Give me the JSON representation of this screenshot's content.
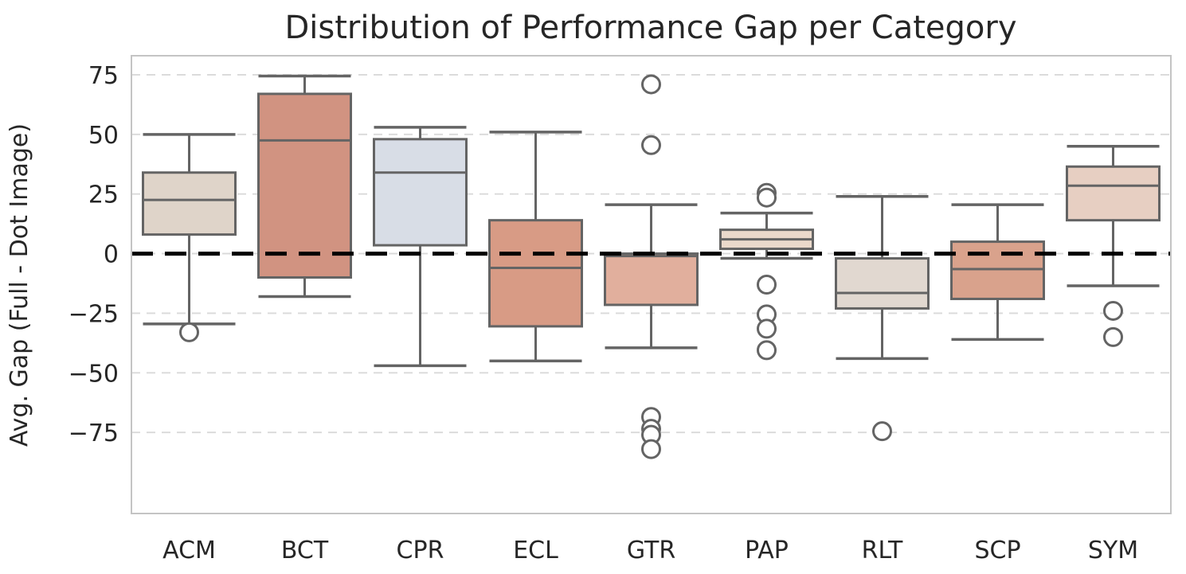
{
  "chart_data": {
    "type": "box",
    "title": "Distribution of Performance Gap per Category",
    "ylabel": "Avg. Gap (Full - Dot Image)",
    "xlabel": "",
    "categories": [
      "ACM",
      "BCT",
      "CPR",
      "ECL",
      "GTR",
      "PAP",
      "RLT",
      "SCP",
      "SYM"
    ],
    "yticks": [
      75,
      50,
      25,
      0,
      -25,
      -50,
      -75
    ],
    "ytick_labels": [
      "75",
      "50",
      "25",
      "0",
      "−25",
      "−50",
      "−75"
    ],
    "ylim": [
      -109,
      83
    ],
    "grid": "horizontal-dashed",
    "legend": "none",
    "zero_line": {
      "value": 0,
      "style": "dashed",
      "color": "#000000"
    },
    "series": [
      {
        "category": "ACM",
        "whislo": -29.5,
        "q1": 8,
        "med": 22.5,
        "q3": 34,
        "whishi": 50,
        "outliers": [
          -33
        ],
        "fill": "#dfd4c9"
      },
      {
        "category": "BCT",
        "whislo": -18,
        "q1": -10,
        "med": 47.5,
        "q3": 67,
        "whishi": 74.5,
        "outliers": [],
        "fill": "#d19381"
      },
      {
        "category": "CPR",
        "whislo": -47,
        "q1": 3.5,
        "med": 34,
        "q3": 48,
        "whishi": 53,
        "outliers": [],
        "fill": "#d8dde6"
      },
      {
        "category": "ECL",
        "whislo": -45,
        "q1": -30.5,
        "med": -6,
        "q3": 14,
        "whishi": 51,
        "outliers": [],
        "fill": "#d89b85"
      },
      {
        "category": "GTR",
        "whislo": -39.5,
        "q1": -21.5,
        "med": -1,
        "q3": 0,
        "whishi": 20.5,
        "outliers": [
          71,
          45.5,
          -68.5,
          -73.5,
          -76,
          -82
        ],
        "fill": "#e1af9d"
      },
      {
        "category": "PAP",
        "whislo": -2,
        "q1": 2,
        "med": 6,
        "q3": 10,
        "whishi": 17,
        "outliers": [
          25.5,
          23.5,
          -13,
          -25.5,
          -31.5,
          -40.5
        ],
        "fill": "#ead9cb"
      },
      {
        "category": "RLT",
        "whislo": -44,
        "q1": -23,
        "med": -16.5,
        "q3": -2,
        "whishi": 24,
        "outliers": [
          -74.5
        ],
        "fill": "#e1d8d0"
      },
      {
        "category": "SCP",
        "whislo": -36,
        "q1": -19,
        "med": -6.5,
        "q3": 5,
        "whishi": 20.5,
        "outliers": [],
        "fill": "#d9a28c"
      },
      {
        "category": "SYM",
        "whislo": -13.5,
        "q1": 14,
        "med": 28.5,
        "q3": 36.5,
        "whishi": 45,
        "outliers": [
          -24,
          -35
        ],
        "fill": "#e7cfc2"
      }
    ],
    "colors": {
      "box_edge": "#646464",
      "whisker": "#646464",
      "median": "#646464",
      "outlier_edge": "#646464",
      "grid": "#d9d9d9",
      "frame": "#c4c4c4",
      "text": "#262626",
      "background": "#ffffff"
    }
  }
}
